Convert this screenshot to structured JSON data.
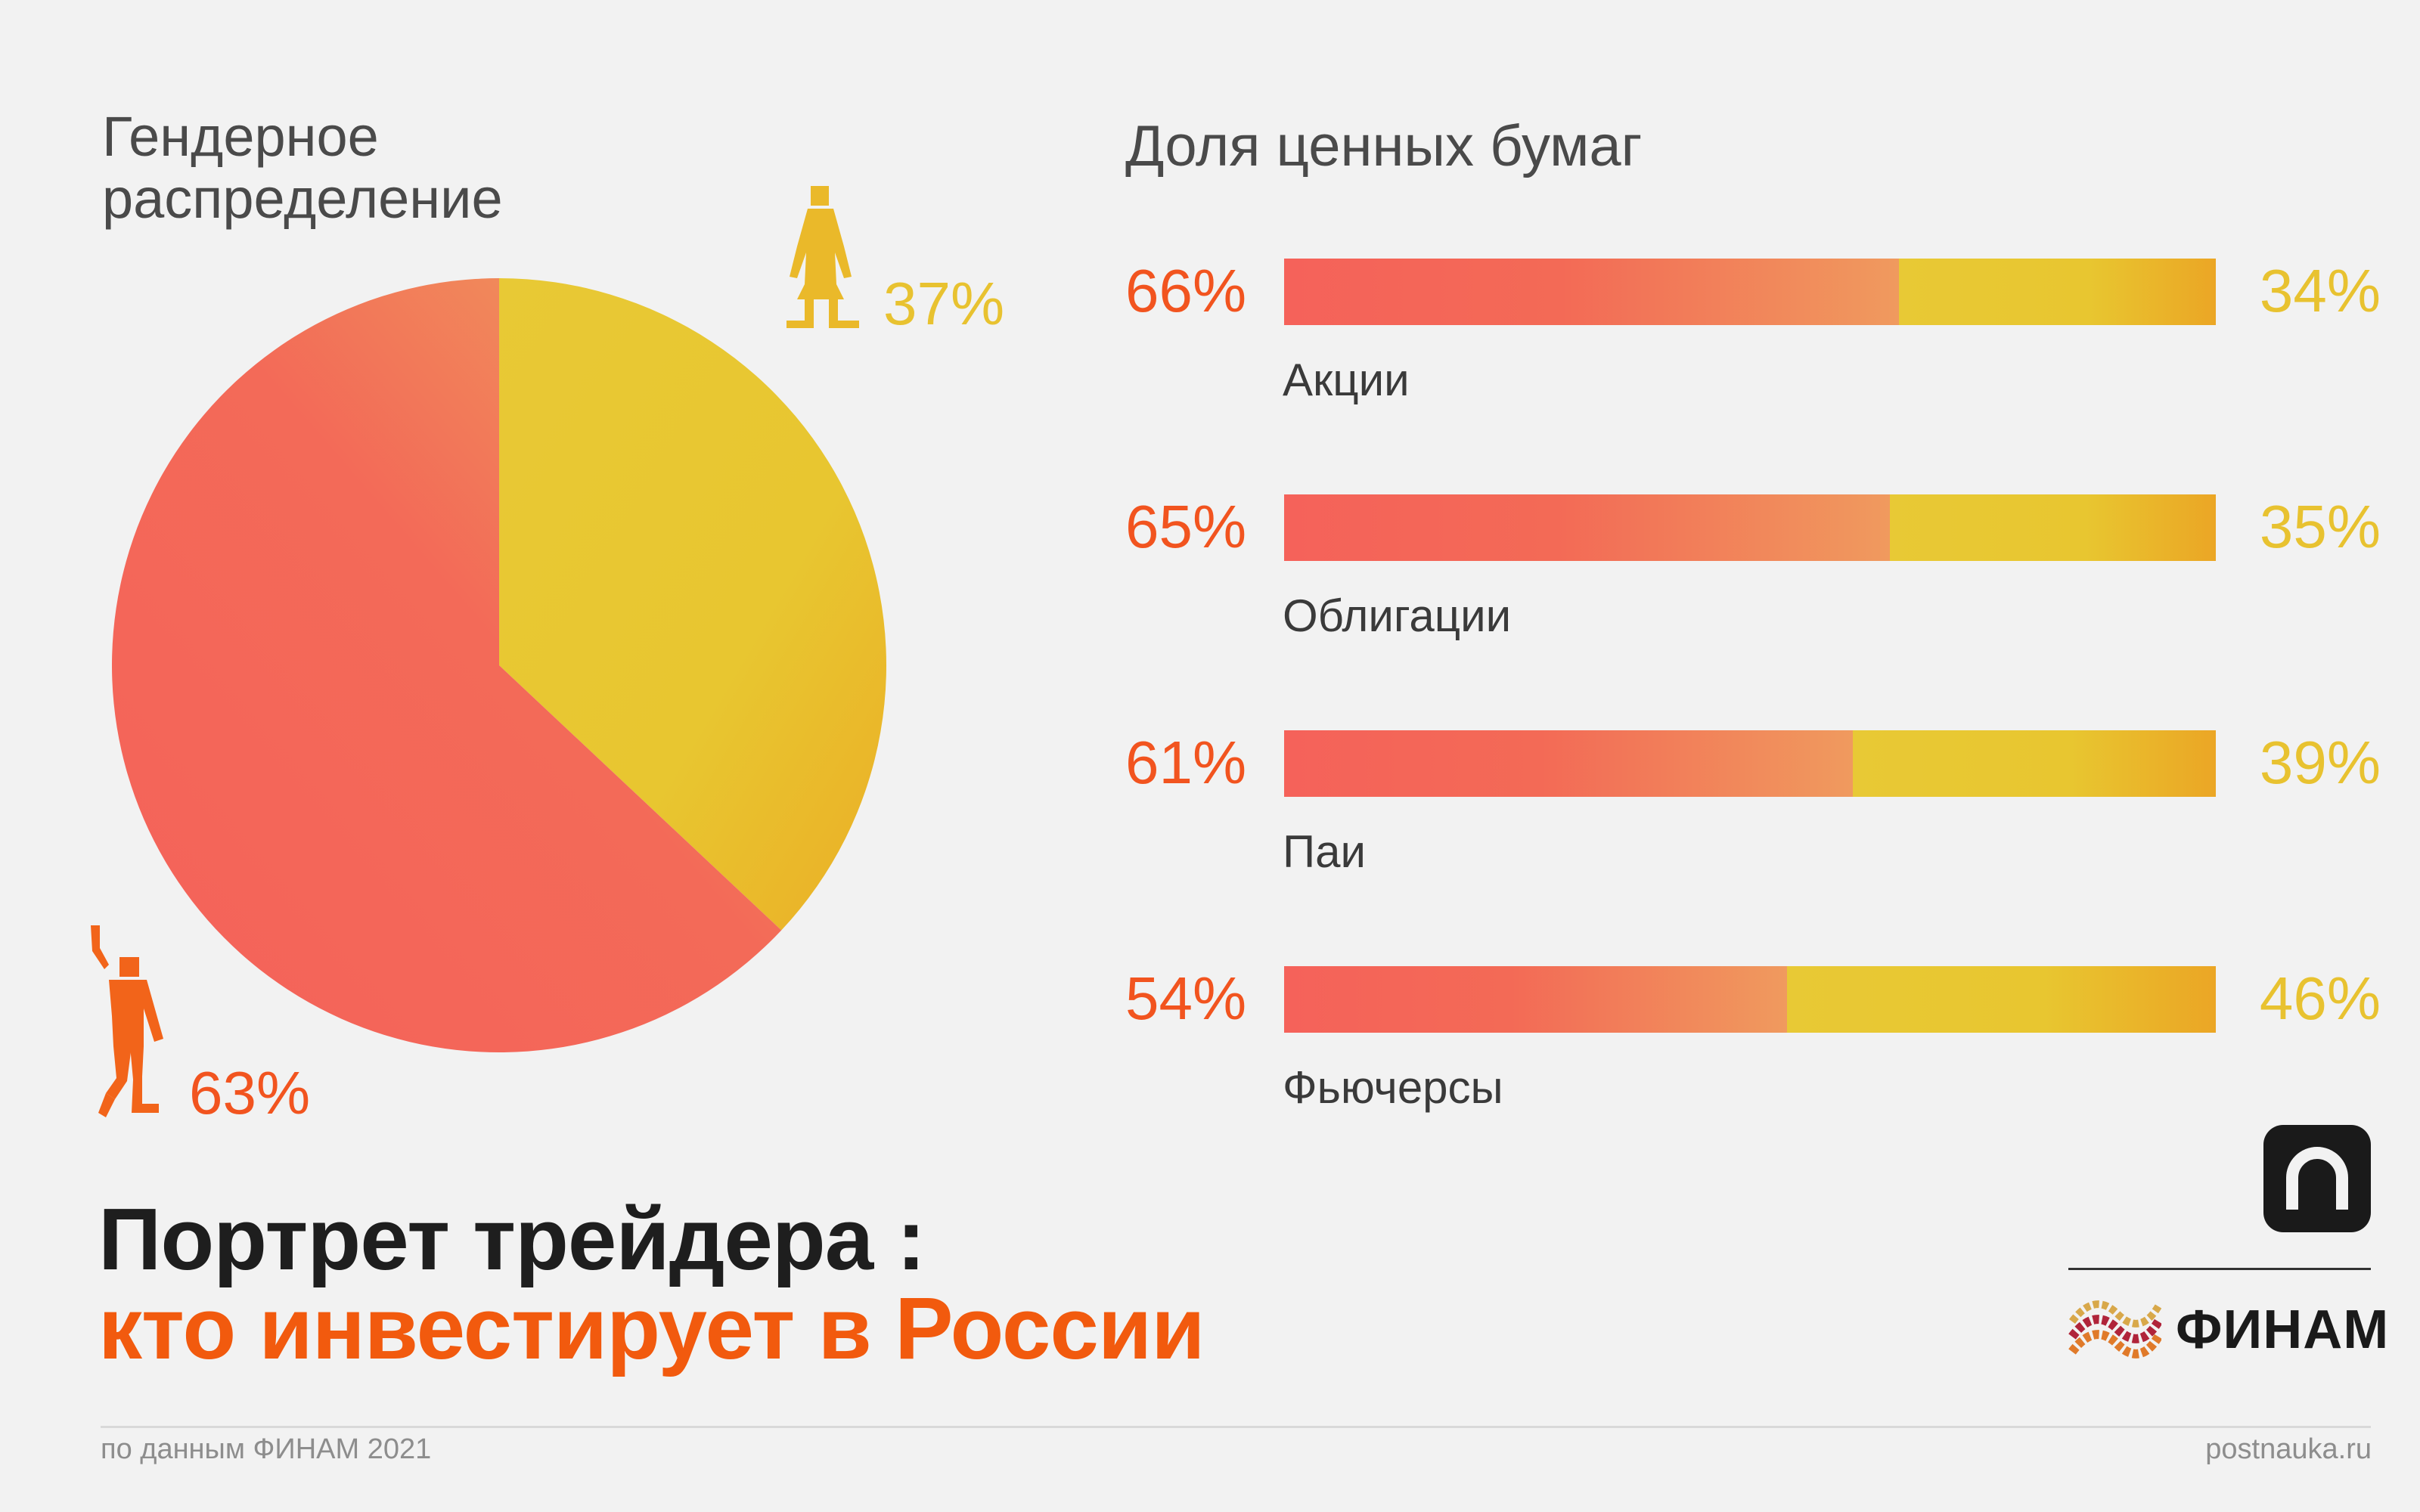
{
  "pie_title": "Гендерное\nраспределение",
  "bars_title": "Доля ценных бумаг",
  "headline": {
    "line1": "Портрет трейдера :",
    "line2": "кто инвестирует в России"
  },
  "footer": {
    "source": "по данным ФИНАМ 2021",
    "site": "postnauka.ru"
  },
  "logos": {
    "postnauka_icon": "postnauka-logo-icon",
    "finam_text": "ФИНАМ"
  },
  "colors": {
    "male": "#f36456",
    "female": "#e8c630",
    "male_text": "#f2541f",
    "female_text": "#e8c230",
    "headline_accent": "#f25a0e"
  },
  "chart_data": [
    {
      "type": "pie",
      "title": "Гендерное распределение",
      "slices": [
        {
          "name": "male",
          "icon": "man-figure-icon",
          "value": 63,
          "label": "63%"
        },
        {
          "name": "female",
          "icon": "woman-figure-icon",
          "value": 37,
          "label": "37%"
        }
      ]
    },
    {
      "type": "bar",
      "stacked": true,
      "orientation": "horizontal",
      "title": "Доля ценных бумаг",
      "categories": [
        "Акции",
        "Облигации",
        "Паи",
        "Фьючерсы"
      ],
      "series": [
        {
          "name": "male",
          "values": [
            66,
            65,
            61,
            54
          ],
          "labels": [
            "66%",
            "65%",
            "61%",
            "54%"
          ]
        },
        {
          "name": "female",
          "values": [
            34,
            35,
            39,
            46
          ],
          "labels": [
            "34%",
            "35%",
            "39%",
            "46%"
          ]
        }
      ]
    }
  ]
}
